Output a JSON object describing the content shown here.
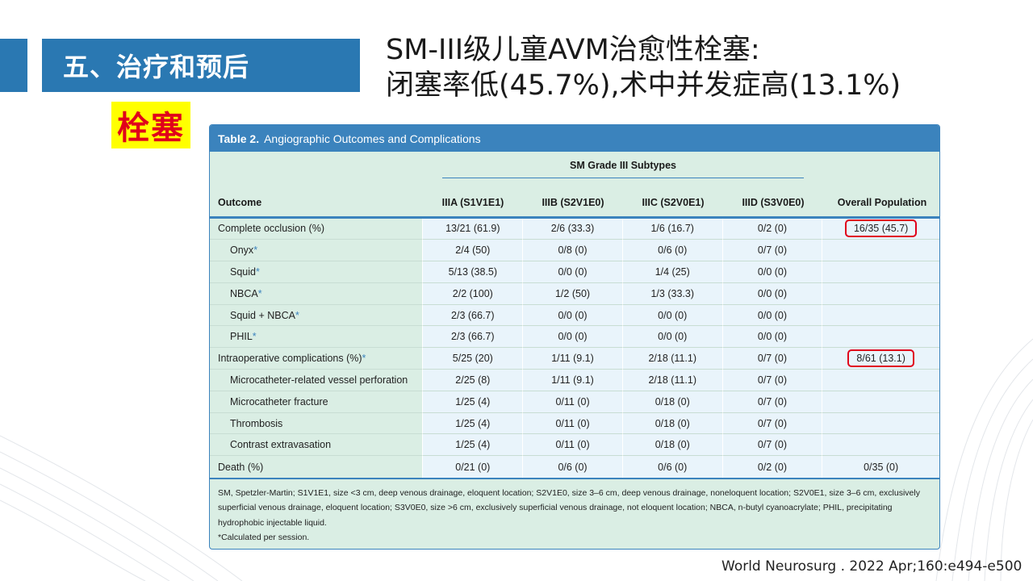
{
  "section_title": "五、治疗和预后",
  "headline": {
    "line1": "SM-III级儿童AVM治愈性栓塞:",
    "line2": "闭塞率低(45.7%),术中并发症高(13.1%)"
  },
  "tag": "栓塞",
  "table": {
    "label": "Table 2.",
    "title": "Angiographic Outcomes and Complications",
    "group_header": "SM Grade III Subtypes",
    "col_outcome": "Outcome",
    "columns": [
      "IIIA (S1V1E1)",
      "IIIB (S2V1E0)",
      "IIIC (S2V0E1)",
      "IIID (S3V0E0)"
    ],
    "col_overall": "Overall Population",
    "rows": [
      {
        "label": "Complete occlusion (%)",
        "star": "",
        "values": [
          "13/21 (61.9)",
          "2/6 (33.3)",
          "1/6 (16.7)",
          "0/2 (0)"
        ],
        "overall": "16/35 (45.7)"
      },
      {
        "label": "Onyx",
        "star": "*",
        "values": [
          "2/4 (50)",
          "0/8 (0)",
          "0/6 (0)",
          "0/7 (0)"
        ],
        "overall": ""
      },
      {
        "label": "Squid",
        "star": "*",
        "values": [
          "5/13 (38.5)",
          "0/0 (0)",
          "1/4 (25)",
          "0/0 (0)"
        ],
        "overall": ""
      },
      {
        "label": "NBCA",
        "star": "*",
        "values": [
          "2/2 (100)",
          "1/2 (50)",
          "1/3 (33.3)",
          "0/0 (0)"
        ],
        "overall": ""
      },
      {
        "label": "Squid + NBCA",
        "star": "*",
        "values": [
          "2/3 (66.7)",
          "0/0 (0)",
          "0/0 (0)",
          "0/0 (0)"
        ],
        "overall": ""
      },
      {
        "label": "PHIL",
        "star": "*",
        "values": [
          "2/3 (66.7)",
          "0/0 (0)",
          "0/0 (0)",
          "0/0 (0)"
        ],
        "overall": ""
      },
      {
        "label": "Intraoperative complications (%)",
        "star": "*",
        "values": [
          "5/25 (20)",
          "1/11 (9.1)",
          "2/18 (11.1)",
          "0/7 (0)"
        ],
        "overall": "8/61 (13.1)"
      },
      {
        "label": "Microcatheter-related vessel perforation",
        "star": "",
        "values": [
          "2/25 (8)",
          "1/11 (9.1)",
          "2/18 (11.1)",
          "0/7 (0)"
        ],
        "overall": ""
      },
      {
        "label": "Microcatheter fracture",
        "star": "",
        "values": [
          "1/25 (4)",
          "0/11 (0)",
          "0/18 (0)",
          "0/7 (0)"
        ],
        "overall": ""
      },
      {
        "label": "Thrombosis",
        "star": "",
        "values": [
          "1/25 (4)",
          "0/11 (0)",
          "0/18 (0)",
          "0/7 (0)"
        ],
        "overall": ""
      },
      {
        "label": "Contrast extravasation",
        "star": "",
        "values": [
          "1/25 (4)",
          "0/11 (0)",
          "0/18 (0)",
          "0/7 (0)"
        ],
        "overall": ""
      },
      {
        "label": "Death (%)",
        "star": "",
        "values": [
          "0/21 (0)",
          "0/6 (0)",
          "0/6 (0)",
          "0/2 (0)"
        ],
        "overall": "0/35 (0)"
      }
    ],
    "footnote": "SM, Spetzler-Martin; S1V1E1, size <3 cm, deep venous drainage, eloquent location; S2V1E0, size 3–6 cm, deep venous drainage, noneloquent location; S2V0E1, size 3–6 cm, exclusively superficial venous drainage, eloquent location; S3V0E0, size >6 cm, exclusively superficial venous drainage, not eloquent location; NBCA, n-butyl cyanoacrylate; PHIL, precipitating hydrophobic injectable liquid.",
    "footnote2": "*Calculated per session."
  },
  "citation": "World Neurosurg . 2022 Apr;160:e494-e500",
  "colors": {
    "accent": "#2a78b2",
    "highlight": "#e0001b",
    "tag_bg": "#ffff00",
    "table_bg": "#daeee4"
  }
}
